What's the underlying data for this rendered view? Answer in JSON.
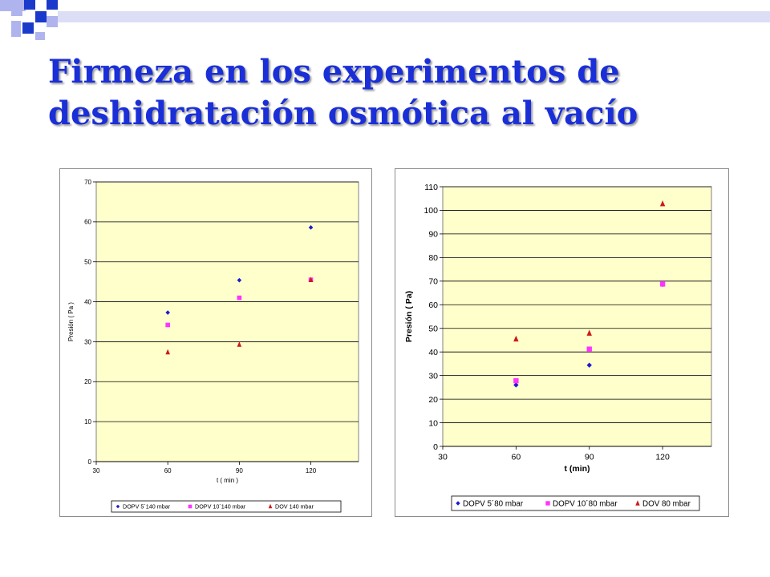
{
  "slide": {
    "title_line1": "Firmeza en los  experimentos de",
    "title_line2": "deshidratación osmótica al vacío"
  },
  "colors": {
    "title": "#1a2fd8",
    "plot_bg": "#ffffcc",
    "series_blue": "#1c1cd0",
    "series_magenta": "#ff33ff",
    "series_red": "#cc1a1a",
    "deco_dark": "#1a3acc",
    "deco_light": "#b0b4ee"
  },
  "chart_data": [
    {
      "type": "scatter",
      "title": "",
      "xlabel": "t ( min )",
      "ylabel": "Presión ( Pa )",
      "xlim": [
        30,
        140
      ],
      "ylim": [
        0,
        70
      ],
      "xticks": [
        30,
        60,
        90,
        120
      ],
      "yticks": [
        0,
        10,
        20,
        30,
        40,
        50,
        60,
        70
      ],
      "grid": true,
      "legend": "bottom",
      "series": [
        {
          "name": "DOPV 5´140 mbar",
          "marker": "diamond",
          "color": "#1c1cd0",
          "x": [
            60,
            90,
            120
          ],
          "y": [
            37.3,
            45.4,
            58.6
          ]
        },
        {
          "name": "DOPV 10´140 mbar",
          "marker": "square",
          "color": "#ff33ff",
          "x": [
            60,
            90,
            120
          ],
          "y": [
            34.2,
            41.0,
            45.5
          ]
        },
        {
          "name": "DOV 140 mbar",
          "marker": "triangle",
          "color": "#cc1a1a",
          "x": [
            60,
            90,
            120
          ],
          "y": [
            27.4,
            29.3,
            45.5
          ]
        }
      ]
    },
    {
      "type": "scatter",
      "title": "",
      "xlabel": "t (min)",
      "ylabel": "Presión ( Pa)",
      "xlim": [
        30,
        140
      ],
      "ylim": [
        0,
        110
      ],
      "xticks": [
        30,
        60,
        90,
        120
      ],
      "yticks": [
        0,
        10,
        20,
        30,
        40,
        50,
        60,
        70,
        80,
        90,
        100,
        110
      ],
      "grid": true,
      "legend": "bottom",
      "series": [
        {
          "name": "DOPV 5´80 mbar",
          "marker": "diamond",
          "color": "#1c1cd0",
          "x": [
            60,
            90,
            120
          ],
          "y": [
            26.0,
            34.4,
            68.6
          ]
        },
        {
          "name": "DOPV 10´80 mbar",
          "marker": "square",
          "color": "#ff33ff",
          "x": [
            60,
            90,
            120
          ],
          "y": [
            27.8,
            41.2,
            68.8
          ]
        },
        {
          "name": "DOV 80 mbar",
          "marker": "triangle",
          "color": "#cc1a1a",
          "x": [
            60,
            90,
            120
          ],
          "y": [
            45.5,
            48.0,
            102.8
          ]
        }
      ]
    }
  ]
}
